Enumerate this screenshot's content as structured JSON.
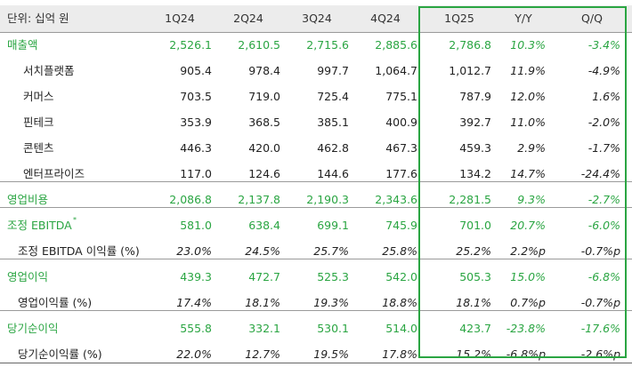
{
  "header": {
    "unit": "단위: 십억 원",
    "cols": [
      "1Q24",
      "2Q24",
      "3Q24",
      "4Q24",
      "1Q25",
      "Y/Y",
      "Q/Q"
    ]
  },
  "rows": [
    {
      "label": "매출액",
      "vals": [
        "2,526.1",
        "2,610.5",
        "2,715.6",
        "2,885.6",
        "2,786.8",
        "10.3%",
        "-3.4%"
      ]
    },
    {
      "label": "서치플랫폼",
      "vals": [
        "905.4",
        "978.4",
        "997.7",
        "1,064.7",
        "1,012.7",
        "11.9%",
        "-4.9%"
      ]
    },
    {
      "label": "커머스",
      "vals": [
        "703.5",
        "719.0",
        "725.4",
        "775.1",
        "787.9",
        "12.0%",
        "1.6%"
      ]
    },
    {
      "label": "핀테크",
      "vals": [
        "353.9",
        "368.5",
        "385.1",
        "400.9",
        "392.7",
        "11.0%",
        "-2.0%"
      ]
    },
    {
      "label": "콘텐츠",
      "vals": [
        "446.3",
        "420.0",
        "462.8",
        "467.3",
        "459.3",
        "2.9%",
        "-1.7%"
      ]
    },
    {
      "label": "엔터프라이즈",
      "vals": [
        "117.0",
        "124.6",
        "144.6",
        "177.6",
        "134.2",
        "14.7%",
        "-24.4%"
      ]
    },
    {
      "label": "영업비용",
      "vals": [
        "2,086.8",
        "2,137.8",
        "2,190.3",
        "2,343.6",
        "2,281.5",
        "9.3%",
        "-2.7%"
      ]
    },
    {
      "label": "조정 EBITDA",
      "sup": "*",
      "vals": [
        "581.0",
        "638.4",
        "699.1",
        "745.9",
        "701.0",
        "20.7%",
        "-6.0%"
      ]
    },
    {
      "label": "조정 EBITDA 이익률 (%)",
      "vals": [
        "23.0%",
        "24.5%",
        "25.7%",
        "25.8%",
        "25.2%",
        "2.2%p",
        "-0.7%p"
      ]
    },
    {
      "label": "영업이익",
      "vals": [
        "439.3",
        "472.7",
        "525.3",
        "542.0",
        "505.3",
        "15.0%",
        "-6.8%"
      ]
    },
    {
      "label": "영업이익률 (%)",
      "vals": [
        "17.4%",
        "18.1%",
        "19.3%",
        "18.8%",
        "18.1%",
        "0.7%p",
        "-0.7%p"
      ]
    },
    {
      "label": "당기순이익",
      "vals": [
        "555.8",
        "332.1",
        "530.1",
        "514.0",
        "423.7",
        "-23.8%",
        "-17.6%"
      ]
    },
    {
      "label": "당기순이익률 (%)",
      "vals": [
        "22.0%",
        "12.7%",
        "19.5%",
        "17.8%",
        "15.2%",
        "-6.8%p",
        "-2.6%p"
      ]
    }
  ]
}
